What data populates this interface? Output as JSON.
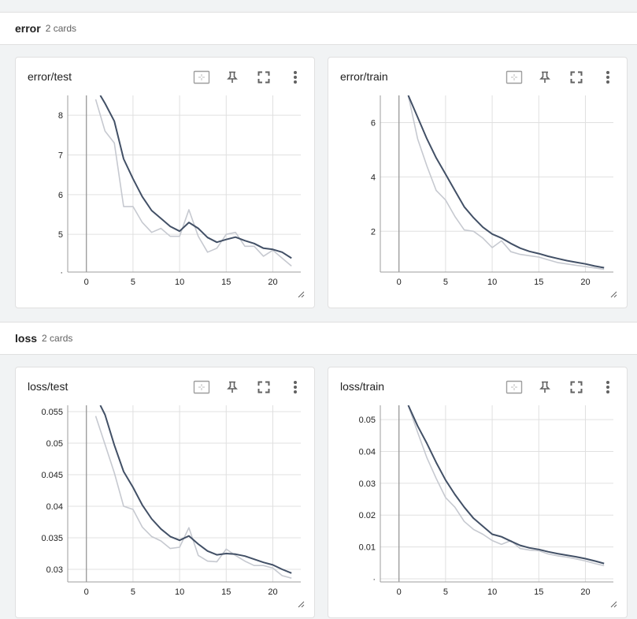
{
  "groups": [
    {
      "name": "error",
      "count": "2 cards",
      "cards": [
        {
          "title": "error/test",
          "chart_data": {
            "type": "line",
            "title": "error/test",
            "xlim": [
              -2,
              23
            ],
            "ylim": [
              4.05,
              8.5
            ],
            "xticks": [
              0,
              5,
              10,
              15,
              20
            ],
            "yticks": [
              {
                "v": 4.05,
                "label": "·"
              },
              {
                "v": 5,
                "label": "5"
              },
              {
                "v": 6,
                "label": "6"
              },
              {
                "v": 7,
                "label": "7"
              },
              {
                "v": 8,
                "label": "8"
              }
            ],
            "series": [
              {
                "role": "raw",
                "color": "#c6c9d0",
                "x": [
                  1,
                  2,
                  3,
                  4,
                  5,
                  6,
                  7,
                  8,
                  9,
                  10,
                  11,
                  12,
                  13,
                  14,
                  15,
                  16,
                  17,
                  18,
                  19,
                  20,
                  21,
                  22
                ],
                "y": [
                  8.4,
                  7.6,
                  7.3,
                  5.7,
                  5.7,
                  5.3,
                  5.05,
                  5.15,
                  4.95,
                  4.95,
                  5.62,
                  4.95,
                  4.55,
                  4.65,
                  5.0,
                  5.05,
                  4.7,
                  4.7,
                  4.45,
                  4.6,
                  4.4,
                  4.2
                ]
              },
              {
                "role": "smoothed",
                "color": "#425066",
                "x": [
                  1.5,
                  2,
                  3,
                  4,
                  5,
                  6,
                  7,
                  8,
                  9,
                  10,
                  11,
                  12,
                  13,
                  14,
                  15,
                  16,
                  17,
                  18,
                  19,
                  20,
                  21,
                  22
                ],
                "y": [
                  8.5,
                  8.3,
                  7.85,
                  6.9,
                  6.4,
                  5.95,
                  5.6,
                  5.4,
                  5.2,
                  5.08,
                  5.3,
                  5.15,
                  4.92,
                  4.8,
                  4.87,
                  4.93,
                  4.84,
                  4.77,
                  4.65,
                  4.62,
                  4.55,
                  4.4
                ]
              }
            ]
          }
        },
        {
          "title": "error/train",
          "chart_data": {
            "type": "line",
            "title": "error/train",
            "xlim": [
              -2,
              23
            ],
            "ylim": [
              0.5,
              7.0
            ],
            "xticks": [
              0,
              5,
              10,
              15,
              20
            ],
            "yticks": [
              {
                "v": 2,
                "label": "2"
              },
              {
                "v": 4,
                "label": "4"
              },
              {
                "v": 6,
                "label": "6"
              }
            ],
            "series": [
              {
                "role": "raw",
                "color": "#c6c9d0",
                "x": [
                  1,
                  2,
                  3,
                  4,
                  5,
                  6,
                  7,
                  8,
                  9,
                  10,
                  11,
                  12,
                  13,
                  14,
                  15,
                  16,
                  17,
                  18,
                  19,
                  20,
                  21,
                  22
                ],
                "y": [
                  7.0,
                  5.4,
                  4.4,
                  3.5,
                  3.15,
                  2.55,
                  2.05,
                  2.0,
                  1.75,
                  1.4,
                  1.65,
                  1.25,
                  1.15,
                  1.1,
                  1.05,
                  0.95,
                  0.85,
                  0.8,
                  0.75,
                  0.7,
                  0.65,
                  0.6
                ]
              },
              {
                "role": "smoothed",
                "color": "#425066",
                "x": [
                  1,
                  2,
                  3,
                  4,
                  5,
                  6,
                  7,
                  8,
                  9,
                  10,
                  11,
                  12,
                  13,
                  14,
                  15,
                  16,
                  17,
                  18,
                  19,
                  20,
                  21,
                  22
                ],
                "y": [
                  7.0,
                  6.2,
                  5.4,
                  4.7,
                  4.1,
                  3.5,
                  2.9,
                  2.5,
                  2.15,
                  1.9,
                  1.75,
                  1.55,
                  1.38,
                  1.26,
                  1.18,
                  1.08,
                  1.0,
                  0.92,
                  0.86,
                  0.8,
                  0.72,
                  0.66
                ]
              }
            ]
          }
        }
      ]
    },
    {
      "name": "loss",
      "count": "2 cards",
      "cards": [
        {
          "title": "loss/test",
          "chart_data": {
            "type": "line",
            "title": "loss/test",
            "xlim": [
              -2,
              23
            ],
            "ylim": [
              0.028,
              0.056
            ],
            "xticks": [
              0,
              5,
              10,
              15,
              20
            ],
            "yticks": [
              {
                "v": 0.03,
                "label": "0.03"
              },
              {
                "v": 0.035,
                "label": "0.035"
              },
              {
                "v": 0.04,
                "label": "0.04"
              },
              {
                "v": 0.045,
                "label": "0.045"
              },
              {
                "v": 0.05,
                "label": "0.05"
              },
              {
                "v": 0.055,
                "label": "0.055"
              }
            ],
            "series": [
              {
                "role": "raw",
                "color": "#c6c9d0",
                "x": [
                  1,
                  2,
                  3,
                  4,
                  5,
                  6,
                  7,
                  8,
                  9,
                  10,
                  11,
                  12,
                  13,
                  14,
                  15,
                  16,
                  17,
                  18,
                  19,
                  20,
                  21,
                  22
                ],
                "y": [
                  0.0543,
                  0.0498,
                  0.0453,
                  0.04,
                  0.0395,
                  0.0367,
                  0.0352,
                  0.0345,
                  0.0333,
                  0.0335,
                  0.0366,
                  0.0322,
                  0.0313,
                  0.0312,
                  0.0332,
                  0.0322,
                  0.0313,
                  0.0306,
                  0.0306,
                  0.0302,
                  0.029,
                  0.0286
                ]
              },
              {
                "role": "smoothed",
                "color": "#425066",
                "x": [
                  1.5,
                  2,
                  3,
                  4,
                  5,
                  6,
                  7,
                  8,
                  9,
                  10,
                  11,
                  12,
                  13,
                  14,
                  15,
                  16,
                  17,
                  18,
                  19,
                  20,
                  21,
                  22
                ],
                "y": [
                  0.056,
                  0.0545,
                  0.0497,
                  0.0455,
                  0.043,
                  0.0402,
                  0.038,
                  0.0364,
                  0.0352,
                  0.0346,
                  0.0353,
                  0.034,
                  0.0329,
                  0.0323,
                  0.0325,
                  0.0324,
                  0.0321,
                  0.0316,
                  0.0311,
                  0.0307,
                  0.03,
                  0.0294
                ]
              }
            ]
          }
        },
        {
          "title": "loss/train",
          "chart_data": {
            "type": "line",
            "title": "loss/train",
            "xlim": [
              -2,
              23
            ],
            "ylim": [
              -0.001,
              0.0545
            ],
            "xticks": [
              0,
              5,
              10,
              15,
              20
            ],
            "yticks": [
              {
                "v": 0.0,
                "label": "·"
              },
              {
                "v": 0.01,
                "label": "0.01"
              },
              {
                "v": 0.02,
                "label": "0.02"
              },
              {
                "v": 0.03,
                "label": "0.03"
              },
              {
                "v": 0.04,
                "label": "0.04"
              },
              {
                "v": 0.05,
                "label": "0.05"
              }
            ],
            "series": [
              {
                "role": "raw",
                "color": "#c6c9d0",
                "x": [
                  1,
                  2,
                  3,
                  4,
                  5,
                  6,
                  7,
                  8,
                  9,
                  10,
                  11,
                  12,
                  13,
                  14,
                  15,
                  16,
                  17,
                  18,
                  19,
                  20,
                  21,
                  22
                ],
                "y": [
                  0.0545,
                  0.046,
                  0.038,
                  0.0315,
                  0.0255,
                  0.0225,
                  0.018,
                  0.0155,
                  0.014,
                  0.012,
                  0.0108,
                  0.012,
                  0.0095,
                  0.009,
                  0.0088,
                  0.0078,
                  0.0072,
                  0.0068,
                  0.0062,
                  0.0056,
                  0.0048,
                  0.0041
                ]
              },
              {
                "role": "smoothed",
                "color": "#425066",
                "x": [
                  1,
                  2,
                  3,
                  4,
                  5,
                  6,
                  7,
                  8,
                  9,
                  10,
                  11,
                  12,
                  13,
                  14,
                  15,
                  16,
                  17,
                  18,
                  19,
                  20,
                  21,
                  22
                ],
                "y": [
                  0.0545,
                  0.048,
                  0.0425,
                  0.0365,
                  0.031,
                  0.0265,
                  0.0225,
                  0.019,
                  0.0165,
                  0.014,
                  0.0132,
                  0.0118,
                  0.0105,
                  0.0097,
                  0.0092,
                  0.0085,
                  0.0079,
                  0.0074,
                  0.0069,
                  0.0063,
                  0.0056,
                  0.0048
                ]
              }
            ]
          }
        }
      ]
    }
  ],
  "toolbar_icons": [
    "fit-domain-icon",
    "pin-icon",
    "fullscreen-icon",
    "more-vert-icon"
  ]
}
